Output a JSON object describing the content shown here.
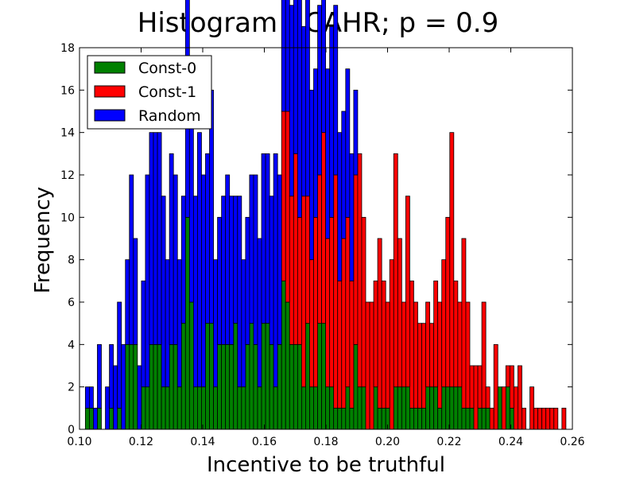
{
  "chart_data": {
    "type": "bar",
    "stacked": true,
    "title": "Histogram - CAHR;  p = 0.9",
    "xlabel": "Incentive to be truthful",
    "ylabel": "Frequency",
    "xlim": [
      0.1,
      0.26
    ],
    "ylim": [
      0,
      18
    ],
    "xticks": [
      0.1,
      0.12,
      0.14,
      0.16,
      0.18,
      0.2,
      0.22,
      0.24,
      0.26
    ],
    "xtick_labels": [
      "0.10",
      "0.12",
      "0.14",
      "0.16",
      "0.18",
      "0.20",
      "0.22",
      "0.24",
      "0.26"
    ],
    "yticks": [
      0,
      2,
      4,
      6,
      8,
      10,
      12,
      14,
      16,
      18
    ],
    "ytick_labels": [
      "0",
      "2",
      "4",
      "6",
      "8",
      "10",
      "12",
      "14",
      "16",
      "18"
    ],
    "grid": false,
    "legend_position": "top-left",
    "bin_width": 0.0013,
    "series": [
      {
        "name": "Const-0",
        "color": "#008000",
        "bins": [
          [
            0.1019,
            1
          ],
          [
            0.1032,
            1
          ],
          [
            0.1058,
            1
          ],
          [
            0.1097,
            1
          ],
          [
            0.1123,
            1
          ],
          [
            0.1149,
            4
          ],
          [
            0.1162,
            4
          ],
          [
            0.1175,
            4
          ],
          [
            0.1201,
            2
          ],
          [
            0.1214,
            2
          ],
          [
            0.1227,
            4
          ],
          [
            0.124,
            4
          ],
          [
            0.1253,
            4
          ],
          [
            0.1266,
            2
          ],
          [
            0.1279,
            2
          ],
          [
            0.1292,
            4
          ],
          [
            0.1305,
            4
          ],
          [
            0.1318,
            2
          ],
          [
            0.1331,
            5
          ],
          [
            0.1344,
            10
          ],
          [
            0.1357,
            6
          ],
          [
            0.137,
            2
          ],
          [
            0.1383,
            2
          ],
          [
            0.1396,
            2
          ],
          [
            0.1409,
            5
          ],
          [
            0.1422,
            5
          ],
          [
            0.1435,
            2
          ],
          [
            0.1448,
            4
          ],
          [
            0.1461,
            4
          ],
          [
            0.1474,
            4
          ],
          [
            0.1487,
            4
          ],
          [
            0.15,
            5
          ],
          [
            0.1513,
            2
          ],
          [
            0.1526,
            2
          ],
          [
            0.1539,
            4
          ],
          [
            0.1552,
            5
          ],
          [
            0.1565,
            4
          ],
          [
            0.1578,
            2
          ],
          [
            0.1591,
            5
          ],
          [
            0.1604,
            5
          ],
          [
            0.1617,
            4
          ],
          [
            0.163,
            2
          ],
          [
            0.1643,
            4
          ],
          [
            0.1656,
            7
          ],
          [
            0.1669,
            6
          ],
          [
            0.1682,
            4
          ],
          [
            0.1695,
            4
          ],
          [
            0.1708,
            4
          ],
          [
            0.1721,
            2
          ],
          [
            0.1734,
            5
          ],
          [
            0.1747,
            2
          ],
          [
            0.176,
            2
          ],
          [
            0.1773,
            5
          ],
          [
            0.1786,
            5
          ],
          [
            0.1799,
            2
          ],
          [
            0.1812,
            2
          ],
          [
            0.1825,
            1
          ],
          [
            0.1838,
            1
          ],
          [
            0.1851,
            1
          ],
          [
            0.1864,
            2
          ],
          [
            0.1877,
            1
          ],
          [
            0.189,
            4
          ],
          [
            0.1903,
            2
          ],
          [
            0.1916,
            2
          ],
          [
            0.1955,
            2
          ],
          [
            0.1968,
            1
          ],
          [
            0.1981,
            1
          ],
          [
            0.1994,
            1
          ],
          [
            0.202,
            2
          ],
          [
            0.2033,
            2
          ],
          [
            0.2046,
            2
          ],
          [
            0.2059,
            2
          ],
          [
            0.2072,
            1
          ],
          [
            0.2085,
            1
          ],
          [
            0.2098,
            1
          ],
          [
            0.2111,
            1
          ],
          [
            0.2124,
            2
          ],
          [
            0.2137,
            2
          ],
          [
            0.215,
            2
          ],
          [
            0.2163,
            1
          ],
          [
            0.2176,
            2
          ],
          [
            0.2189,
            2
          ],
          [
            0.2202,
            2
          ],
          [
            0.2215,
            2
          ],
          [
            0.2228,
            2
          ],
          [
            0.2241,
            1
          ],
          [
            0.2254,
            1
          ],
          [
            0.2267,
            1
          ],
          [
            0.2293,
            1
          ],
          [
            0.2306,
            1
          ],
          [
            0.2319,
            1
          ],
          [
            0.2358,
            2
          ],
          [
            0.2384,
            2
          ],
          [
            0.2397,
            1
          ]
        ]
      },
      {
        "name": "Const-1",
        "color": "#ff0000",
        "bins": [
          [
            0.1656,
            8
          ],
          [
            0.1669,
            9
          ],
          [
            0.1682,
            7
          ],
          [
            0.1695,
            9
          ],
          [
            0.1708,
            6
          ],
          [
            0.1721,
            9
          ],
          [
            0.1734,
            6
          ],
          [
            0.1747,
            6
          ],
          [
            0.176,
            8
          ],
          [
            0.1773,
            7
          ],
          [
            0.1786,
            9
          ],
          [
            0.1799,
            7
          ],
          [
            0.1812,
            8
          ],
          [
            0.1825,
            11
          ],
          [
            0.1838,
            6
          ],
          [
            0.1851,
            8
          ],
          [
            0.1864,
            8
          ],
          [
            0.1877,
            6
          ],
          [
            0.189,
            8
          ],
          [
            0.1903,
            11
          ],
          [
            0.1916,
            8
          ],
          [
            0.1929,
            6
          ],
          [
            0.1942,
            6
          ],
          [
            0.1955,
            5
          ],
          [
            0.1968,
            8
          ],
          [
            0.1981,
            6
          ],
          [
            0.1994,
            5
          ],
          [
            0.2007,
            8
          ],
          [
            0.202,
            11
          ],
          [
            0.2033,
            7
          ],
          [
            0.2046,
            4
          ],
          [
            0.2059,
            9
          ],
          [
            0.2072,
            6
          ],
          [
            0.2085,
            5
          ],
          [
            0.2098,
            4
          ],
          [
            0.2111,
            4
          ],
          [
            0.2124,
            4
          ],
          [
            0.2137,
            3
          ],
          [
            0.215,
            5
          ],
          [
            0.2163,
            5
          ],
          [
            0.2176,
            6
          ],
          [
            0.2189,
            8
          ],
          [
            0.2202,
            12
          ],
          [
            0.2215,
            5
          ],
          [
            0.2228,
            4
          ],
          [
            0.2241,
            8
          ],
          [
            0.2254,
            5
          ],
          [
            0.2267,
            2
          ],
          [
            0.228,
            3
          ],
          [
            0.2293,
            2
          ],
          [
            0.2306,
            5
          ],
          [
            0.2319,
            1
          ],
          [
            0.2332,
            1
          ],
          [
            0.2345,
            4
          ],
          [
            0.2371,
            2
          ],
          [
            0.2384,
            1
          ],
          [
            0.2397,
            2
          ],
          [
            0.241,
            2
          ],
          [
            0.2423,
            3
          ],
          [
            0.2436,
            1
          ],
          [
            0.2462,
            2
          ],
          [
            0.2475,
            1
          ],
          [
            0.2488,
            1
          ],
          [
            0.2501,
            1
          ],
          [
            0.2514,
            1
          ],
          [
            0.2527,
            1
          ],
          [
            0.254,
            1
          ],
          [
            0.2566,
            1
          ]
        ]
      },
      {
        "name": "Random",
        "color": "#0000ff",
        "bins": [
          [
            0.1019,
            1
          ],
          [
            0.1032,
            1
          ],
          [
            0.1045,
            1
          ],
          [
            0.1058,
            3
          ],
          [
            0.1084,
            2
          ],
          [
            0.1097,
            3
          ],
          [
            0.111,
            3
          ],
          [
            0.1123,
            5
          ],
          [
            0.1136,
            4
          ],
          [
            0.1149,
            4
          ],
          [
            0.1162,
            8
          ],
          [
            0.1175,
            5
          ],
          [
            0.1188,
            3
          ],
          [
            0.1201,
            5
          ],
          [
            0.1214,
            10
          ],
          [
            0.1227,
            10
          ],
          [
            0.124,
            10
          ],
          [
            0.1253,
            10
          ],
          [
            0.1266,
            9
          ],
          [
            0.1279,
            6
          ],
          [
            0.1292,
            9
          ],
          [
            0.1305,
            8
          ],
          [
            0.1318,
            6
          ],
          [
            0.1331,
            6
          ],
          [
            0.1344,
            14
          ],
          [
            0.1357,
            11
          ],
          [
            0.137,
            9
          ],
          [
            0.1383,
            12
          ],
          [
            0.1396,
            10
          ],
          [
            0.1409,
            8
          ],
          [
            0.1422,
            11
          ],
          [
            0.1435,
            6
          ],
          [
            0.1448,
            6
          ],
          [
            0.1461,
            7
          ],
          [
            0.1474,
            8
          ],
          [
            0.1487,
            7
          ],
          [
            0.15,
            6
          ],
          [
            0.1513,
            9
          ],
          [
            0.1526,
            6
          ],
          [
            0.1539,
            6
          ],
          [
            0.1552,
            7
          ],
          [
            0.1565,
            8
          ],
          [
            0.1578,
            7
          ],
          [
            0.1591,
            8
          ],
          [
            0.1604,
            8
          ],
          [
            0.1617,
            7
          ],
          [
            0.163,
            11
          ],
          [
            0.1643,
            8
          ],
          [
            0.1656,
            10
          ],
          [
            0.1669,
            8
          ],
          [
            0.1682,
            9
          ],
          [
            0.1695,
            11
          ],
          [
            0.1708,
            12
          ],
          [
            0.1721,
            8
          ],
          [
            0.1734,
            10
          ],
          [
            0.1747,
            8
          ],
          [
            0.176,
            7
          ],
          [
            0.1773,
            8
          ],
          [
            0.1786,
            9
          ],
          [
            0.1799,
            8
          ],
          [
            0.1812,
            9
          ],
          [
            0.1825,
            8
          ],
          [
            0.1838,
            7
          ],
          [
            0.1851,
            6
          ],
          [
            0.1864,
            7
          ],
          [
            0.1877,
            6
          ],
          [
            0.189,
            4
          ]
        ]
      }
    ]
  }
}
